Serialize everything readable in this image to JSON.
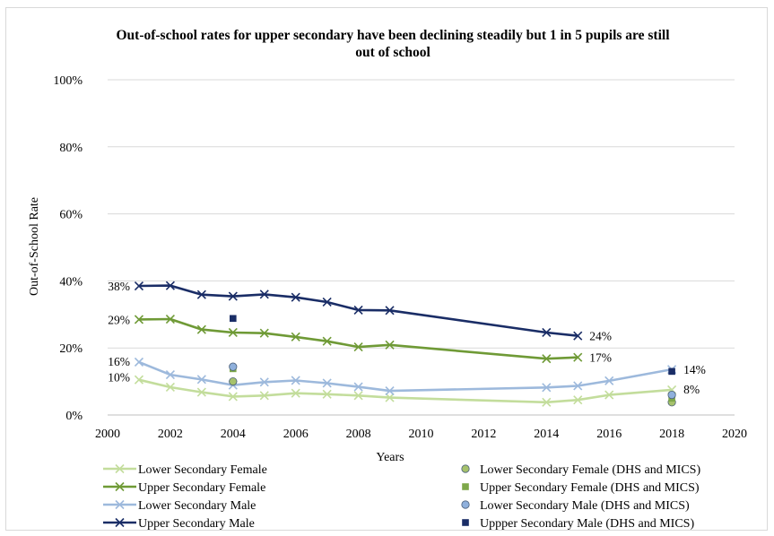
{
  "chart_data": {
    "type": "line",
    "title_lines": [
      "Out-of-school rates for upper secondary have been declining steadily but 1 in 5 pupils are still",
      "out of school"
    ],
    "xlabel": "Years",
    "ylabel": "Out-of-School Rate",
    "xlim": [
      2000,
      2020
    ],
    "ylim": [
      0,
      100
    ],
    "x_ticks": [
      "2000",
      "2002",
      "2004",
      "2006",
      "2008",
      "2010",
      "2012",
      "2014",
      "2016",
      "2018",
      "2020"
    ],
    "y_ticks": [
      "0%",
      "20%",
      "40%",
      "60%",
      "80%",
      "100%"
    ],
    "grid": "horizontal",
    "series": [
      {
        "name": "Lower Secondary Female",
        "color": "#c3dd9c",
        "marker": "x",
        "points": [
          [
            2001,
            10.5
          ],
          [
            2002,
            8.3
          ],
          [
            2003,
            6.8
          ],
          [
            2004,
            5.5
          ],
          [
            2005,
            5.8
          ],
          [
            2006,
            6.5
          ],
          [
            2007,
            6.2
          ],
          [
            2008,
            5.8
          ],
          [
            2009,
            5.2
          ],
          [
            2014,
            3.8
          ],
          [
            2015,
            4.5
          ],
          [
            2016,
            6.0
          ],
          [
            2018,
            7.5
          ]
        ],
        "start_label": "10%",
        "end_label": "8%"
      },
      {
        "name": "Upper Secondary Female",
        "color": "#6f9a36",
        "marker": "x",
        "points": [
          [
            2001,
            28.5
          ],
          [
            2002,
            28.6
          ],
          [
            2003,
            25.5
          ],
          [
            2004,
            24.6
          ],
          [
            2005,
            24.4
          ],
          [
            2006,
            23.3
          ],
          [
            2007,
            22.0
          ],
          [
            2008,
            20.3
          ],
          [
            2009,
            20.9
          ],
          [
            2014,
            16.8
          ],
          [
            2015,
            17.2
          ]
        ],
        "start_label": "29%",
        "end_label": "17%"
      },
      {
        "name": "Lower Secondary Male",
        "color": "#9db9dc",
        "marker": "x",
        "points": [
          [
            2001,
            15.8
          ],
          [
            2002,
            12.0
          ],
          [
            2003,
            10.6
          ],
          [
            2004,
            8.9
          ],
          [
            2005,
            9.8
          ],
          [
            2006,
            10.3
          ],
          [
            2007,
            9.5
          ],
          [
            2008,
            8.4
          ],
          [
            2009,
            7.2
          ],
          [
            2014,
            8.2
          ],
          [
            2015,
            8.7
          ],
          [
            2016,
            10.2
          ],
          [
            2018,
            13.6
          ]
        ],
        "start_label": "16%",
        "end_label": "14%"
      },
      {
        "name": "Upper Secondary Male",
        "color": "#1a2d66",
        "marker": "x",
        "points": [
          [
            2001,
            38.5
          ],
          [
            2002,
            38.6
          ],
          [
            2003,
            35.9
          ],
          [
            2004,
            35.4
          ],
          [
            2005,
            36.0
          ],
          [
            2006,
            35.1
          ],
          [
            2007,
            33.7
          ],
          [
            2008,
            31.3
          ],
          [
            2009,
            31.2
          ],
          [
            2014,
            24.6
          ],
          [
            2015,
            23.6
          ]
        ],
        "start_label": "38%",
        "end_label": "24%"
      }
    ],
    "survey_series": [
      {
        "name": "Lower Secondary Female (DHS and MICS)",
        "color": "#a6c26c",
        "marker": "circle",
        "points": [
          [
            2004,
            10.0
          ],
          [
            2018,
            3.8
          ]
        ]
      },
      {
        "name": "Upper Secondary Female (DHS and MICS)",
        "color": "#7ea84a",
        "marker": "square",
        "points": [
          [
            2004,
            13.8
          ],
          [
            2018,
            5.0
          ]
        ]
      },
      {
        "name": "Lower Secondary Male (DHS and MICS)",
        "color": "#8fb0dc",
        "marker": "circle",
        "points": [
          [
            2004,
            14.4
          ],
          [
            2018,
            6.0
          ]
        ]
      },
      {
        "name": "Uppper Secondary Male (DHS and MICS)",
        "color": "#1a2d66",
        "marker": "square",
        "points": [
          [
            2004,
            28.8
          ],
          [
            2018,
            13.0
          ]
        ]
      }
    ],
    "legend_placement": "bottom"
  }
}
